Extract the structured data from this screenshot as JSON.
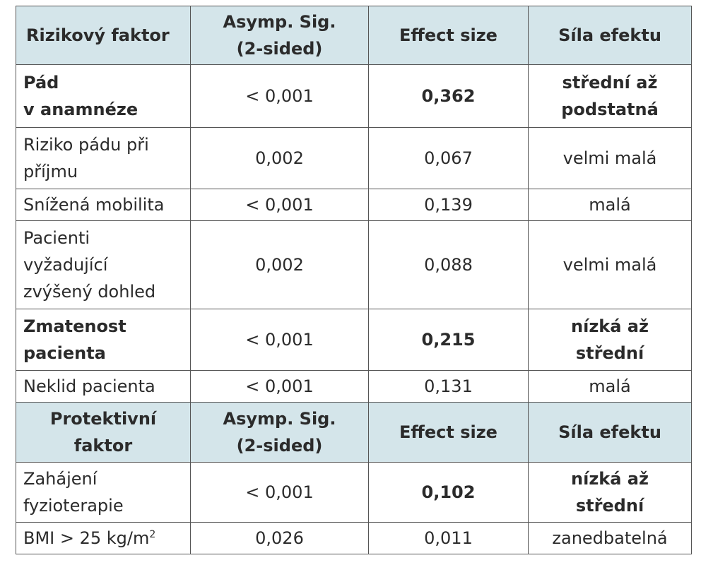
{
  "header_risk": {
    "factor": "Rizikový faktor",
    "sig": [
      "Asymp. Sig.",
      "(2-sided)"
    ],
    "effect": "Effect size",
    "strength": "Síla efektu"
  },
  "risk_rows": [
    {
      "factor": [
        "Pád",
        "v anamnéze"
      ],
      "sig": "< 0,001",
      "effect": "0,362",
      "strength": [
        "střední až",
        "podstatná"
      ],
      "bold": true
    },
    {
      "factor": [
        "Riziko pádu při",
        "příjmu"
      ],
      "sig": "0,002",
      "effect": "0,067",
      "strength": [
        "velmi malá"
      ],
      "bold": false
    },
    {
      "factor": [
        "Snížená mobilita"
      ],
      "sig": "< 0,001",
      "effect": "0,139",
      "strength": [
        "malá"
      ],
      "bold": false
    },
    {
      "factor": [
        "Pacienti",
        "vyžadující",
        "zvýšený dohled"
      ],
      "sig": "0,002",
      "effect": "0,088",
      "strength": [
        "velmi malá"
      ],
      "bold": false
    },
    {
      "factor": [
        "Zmatenost",
        "pacienta"
      ],
      "sig": "< 0,001",
      "effect": "0,215",
      "strength": [
        "nízká až střední"
      ],
      "bold": true
    },
    {
      "factor": [
        "Neklid pacienta"
      ],
      "sig": "< 0,001",
      "effect": "0,131",
      "strength": [
        "malá"
      ],
      "bold": false
    }
  ],
  "header_protective": {
    "factor": [
      "Protektivní",
      "faktor"
    ],
    "sig": [
      "Asymp. Sig.",
      "(2-sided)"
    ],
    "effect": "Effect size",
    "strength": "Síla efektu"
  },
  "protective_rows": [
    {
      "factor": [
        "Zahájení",
        "fyzioterapie"
      ],
      "sig": "< 0,001",
      "effect": "0,102",
      "strength": [
        "nízká až střední"
      ],
      "bold_effect": true
    },
    {
      "factor_main": "BMI > 25 kg/m",
      "factor_sup": "2",
      "sig": "0,026",
      "effect": "0,011",
      "strength": [
        "zanedbatelná"
      ],
      "bold_effect": false
    }
  ],
  "colors": {
    "header_bg": "#d4e5ea",
    "border": "#555555",
    "text": "#2b2b2b"
  }
}
